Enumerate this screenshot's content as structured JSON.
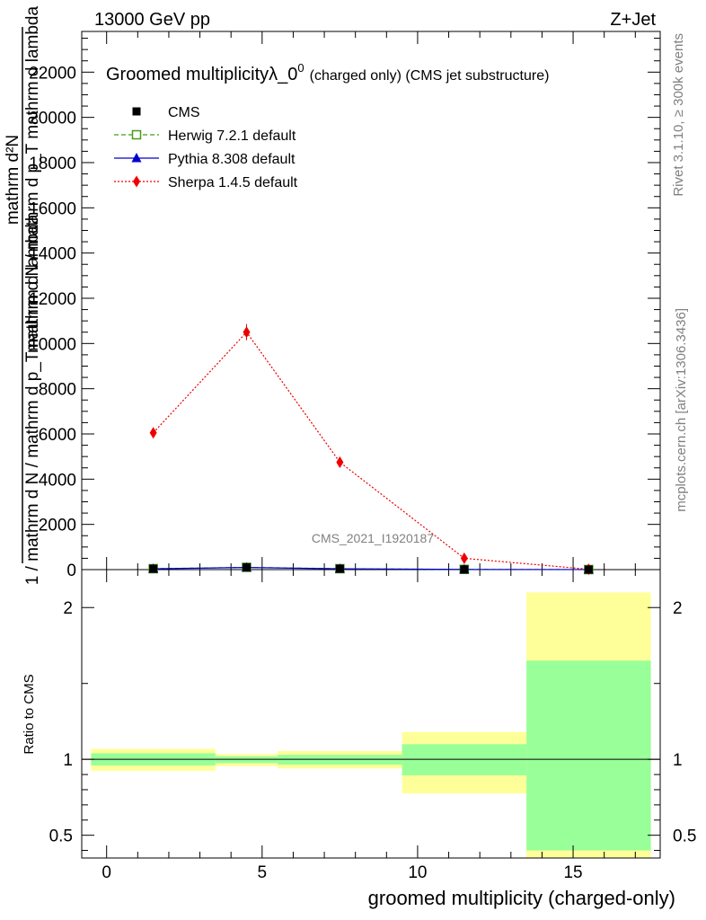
{
  "header": {
    "energy_label": "13000 GeV pp",
    "process_label": "Z+Jet"
  },
  "side_labels": {
    "rivet": "Rivet 3.1.10, ≥ 300k events",
    "mcplots": "mcplots.cern.ch [arXiv:1306.3436]"
  },
  "chart_data": {
    "type": "line",
    "title_main": "Groomed multiplicityλ_0",
    "title_sup": "0",
    "title_sub": "(charged only) (CMS jet substructure)",
    "analysis_id": "CMS_2021_I1920187",
    "ylabel_upper": "mathrm d N / mathrm d p_T mathrm d lambda",
    "ylabel_lower": "1 / mathrm d N / mathrm d p_T mathrm d lambda",
    "ylabel_main": "mathrm d²N",
    "ratio_ylabel": "Ratio to CMS",
    "xlabel": "groomed multiplicity (charged-only)",
    "xlim": [
      -0.8,
      17.8
    ],
    "ylim_main": [
      0,
      23800
    ],
    "ylim_ratio": [
      0.35,
      2.25
    ],
    "main_yticks": [
      {
        "v": 0,
        "label": "0"
      },
      {
        "v": 2000,
        "label": "2000"
      },
      {
        "v": 4000,
        "label": "4000"
      },
      {
        "v": 6000,
        "label": "6000"
      },
      {
        "v": 8000,
        "label": "8000"
      },
      {
        "v": 10000,
        "label": "10000"
      },
      {
        "v": 12000,
        "label": "12000"
      },
      {
        "v": 14000,
        "label": "14000"
      },
      {
        "v": 16000,
        "label": "16000"
      },
      {
        "v": 18000,
        "label": "18000"
      },
      {
        "v": 20000,
        "label": "20000"
      },
      {
        "v": 22000,
        "label": "22000"
      }
    ],
    "ratio_yticks": [
      {
        "v": 0.5,
        "label": "0.5"
      },
      {
        "v": 1,
        "label": "1"
      },
      {
        "v": 2,
        "label": "2"
      }
    ],
    "xticks": [
      {
        "v": 0,
        "label": "0"
      },
      {
        "v": 5,
        "label": "5"
      },
      {
        "v": 10,
        "label": "10"
      },
      {
        "v": 15,
        "label": "15"
      }
    ],
    "bins": [
      {
        "lo": -0.5,
        "hi": 3.5,
        "x": 1.5
      },
      {
        "lo": 3.5,
        "hi": 5.5,
        "x": 4.5
      },
      {
        "lo": 5.5,
        "hi": 9.5,
        "x": 7.5
      },
      {
        "lo": 9.5,
        "hi": 13.5,
        "x": 11.5
      },
      {
        "lo": 13.5,
        "hi": 17.5,
        "x": 15.5
      }
    ],
    "series": [
      {
        "name": "CMS",
        "key": "cms",
        "color": "#000000",
        "marker": "square-filled",
        "line": "none",
        "values": [
          40,
          100,
          40,
          10,
          2
        ]
      },
      {
        "name": "Herwig 7.2.1 default",
        "key": "herwig",
        "color": "#4a9a1a",
        "marker": "square-open",
        "line": "dashed",
        "values": [
          40,
          100,
          40,
          10,
          2
        ]
      },
      {
        "name": "Pythia 8.308 default",
        "key": "pythia",
        "color": "#0000cc",
        "marker": "triangle",
        "line": "solid",
        "values": [
          35,
          95,
          35,
          8,
          2
        ]
      },
      {
        "name": "Sherpa 1.4.5 default",
        "key": "sherpa",
        "color": "#ee0000",
        "marker": "diamond",
        "line": "dotted",
        "values": [
          6050,
          10500,
          4750,
          500,
          15
        ]
      }
    ],
    "ratio_bands": [
      {
        "lo": -0.5,
        "hi": 3.5,
        "yellow": [
          0.925,
          1.07
        ],
        "green": [
          0.96,
          1.04
        ]
      },
      {
        "lo": 3.5,
        "hi": 5.5,
        "yellow": [
          0.955,
          1.035
        ],
        "green": [
          0.975,
          1.02
        ]
      },
      {
        "lo": 5.5,
        "hi": 9.5,
        "yellow": [
          0.94,
          1.055
        ],
        "green": [
          0.965,
          1.03
        ]
      },
      {
        "lo": 9.5,
        "hi": 13.5,
        "yellow": [
          0.775,
          1.18
        ],
        "green": [
          0.895,
          1.1
        ]
      },
      {
        "lo": 13.5,
        "hi": 17.5,
        "yellow": [
          0.35,
          2.1
        ],
        "green": [
          0.4,
          1.65
        ]
      }
    ],
    "colors": {
      "yellow": "#ffff99",
      "green": "#99ff99"
    }
  }
}
